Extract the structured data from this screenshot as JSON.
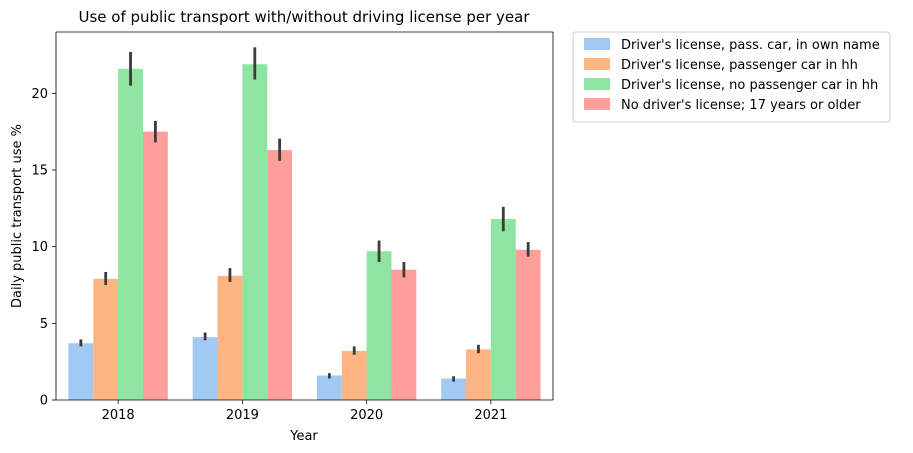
{
  "chart_data": {
    "type": "bar",
    "title": "Use of public transport with/without driving license per year",
    "xlabel": "Year",
    "ylabel": "Daily public transport use %",
    "categories": [
      "2018",
      "2019",
      "2020",
      "2021"
    ],
    "ylim": [
      0,
      24
    ],
    "yticks": [
      0,
      5,
      10,
      15,
      20
    ],
    "grid": false,
    "legend_position": "outside-top-right",
    "series": [
      {
        "name": "Driver's license, pass. car, in own name",
        "color": "#a1c9f4",
        "values": [
          3.7,
          4.1,
          1.6,
          1.4
        ],
        "ci_low": [
          3.5,
          3.9,
          1.4,
          1.2
        ],
        "ci_high": [
          3.95,
          4.4,
          1.75,
          1.55
        ]
      },
      {
        "name": "Driver's license, passenger car in hh",
        "color": "#ffb482",
        "values": [
          7.9,
          8.1,
          3.2,
          3.3
        ],
        "ci_low": [
          7.5,
          7.7,
          2.95,
          3.05
        ],
        "ci_high": [
          8.35,
          8.6,
          3.5,
          3.6
        ]
      },
      {
        "name": "Driver's license, no passenger car in hh",
        "color": "#8de5a1",
        "values": [
          21.6,
          21.9,
          9.7,
          11.8
        ],
        "ci_low": [
          20.5,
          20.9,
          9.0,
          11.0
        ],
        "ci_high": [
          22.7,
          23.0,
          10.4,
          12.6
        ]
      },
      {
        "name": "No driver's license; 17 years or older",
        "color": "#ff9f9b",
        "values": [
          17.5,
          16.3,
          8.5,
          9.8
        ],
        "ci_low": [
          16.8,
          15.6,
          8.0,
          9.35
        ],
        "ci_high": [
          18.2,
          17.05,
          9.0,
          10.3
        ]
      }
    ]
  }
}
